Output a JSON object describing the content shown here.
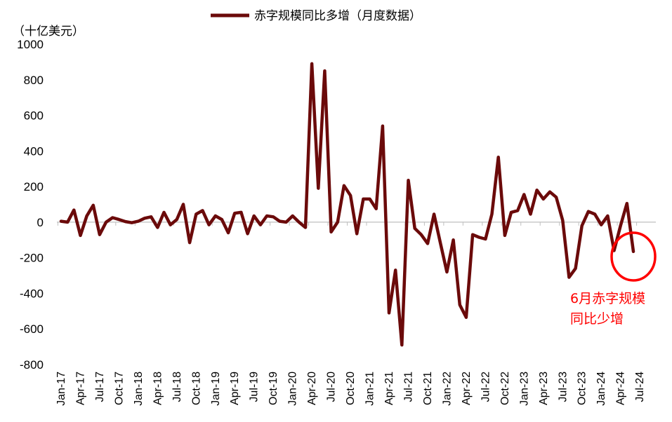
{
  "chart_data": {
    "type": "line",
    "title": "",
    "ylabel": "（十亿美元）",
    "ylim": [
      -800,
      1000
    ],
    "yticks": [
      1000,
      800,
      600,
      400,
      200,
      0,
      -200,
      -400,
      -600,
      -800
    ],
    "ytick_labels": [
      "1000",
      "800",
      "600",
      "400",
      "200",
      "0",
      "-200",
      "-400",
      "-600",
      "-800"
    ],
    "xtick_labels": [
      "Jan-17",
      "Apr-17",
      "Jul-17",
      "Oct-17",
      "Jan-18",
      "Apr-18",
      "Jul-18",
      "Oct-18",
      "Jan-19",
      "Apr-19",
      "Jul-19",
      "Oct-19",
      "Jan-20",
      "Apr-20",
      "Jul-20",
      "Oct-20",
      "Jan-21",
      "Apr-21",
      "Jul-21",
      "Oct-21",
      "Jan-22",
      "Apr-22",
      "Jul-22",
      "Oct-22",
      "Jan-23",
      "Apr-23",
      "Jul-23",
      "Oct-23",
      "Jan-24",
      "Apr-24",
      "Jul-24"
    ],
    "x_start": "Jan-17",
    "x_end": "Jun-24",
    "series": [
      {
        "name": "赤字规模同比多增（月度数据）",
        "color": "#6b0a0a",
        "values": [
          5,
          0,
          68,
          -75,
          35,
          95,
          -70,
          0,
          25,
          15,
          3,
          -3,
          5,
          22,
          30,
          -30,
          55,
          -15,
          15,
          100,
          -115,
          45,
          65,
          -15,
          35,
          15,
          -60,
          50,
          55,
          -65,
          35,
          -15,
          35,
          30,
          5,
          0,
          35,
          0,
          -30,
          890,
          190,
          850,
          -55,
          0,
          205,
          150,
          -65,
          130,
          130,
          75,
          540,
          -510,
          -270,
          -690,
          235,
          -35,
          -70,
          -120,
          45,
          -120,
          -280,
          -100,
          -465,
          -535,
          -70,
          -85,
          -95,
          45,
          365,
          -75,
          55,
          65,
          155,
          45,
          180,
          130,
          170,
          140,
          10,
          -310,
          -260,
          -20,
          60,
          45,
          -15,
          35,
          -160,
          -20,
          105,
          -165
        ]
      }
    ],
    "annotation": {
      "line1": "6月赤字规模",
      "line2": "同比少增",
      "color": "#ff0000"
    },
    "grid": false,
    "legend": "top"
  }
}
